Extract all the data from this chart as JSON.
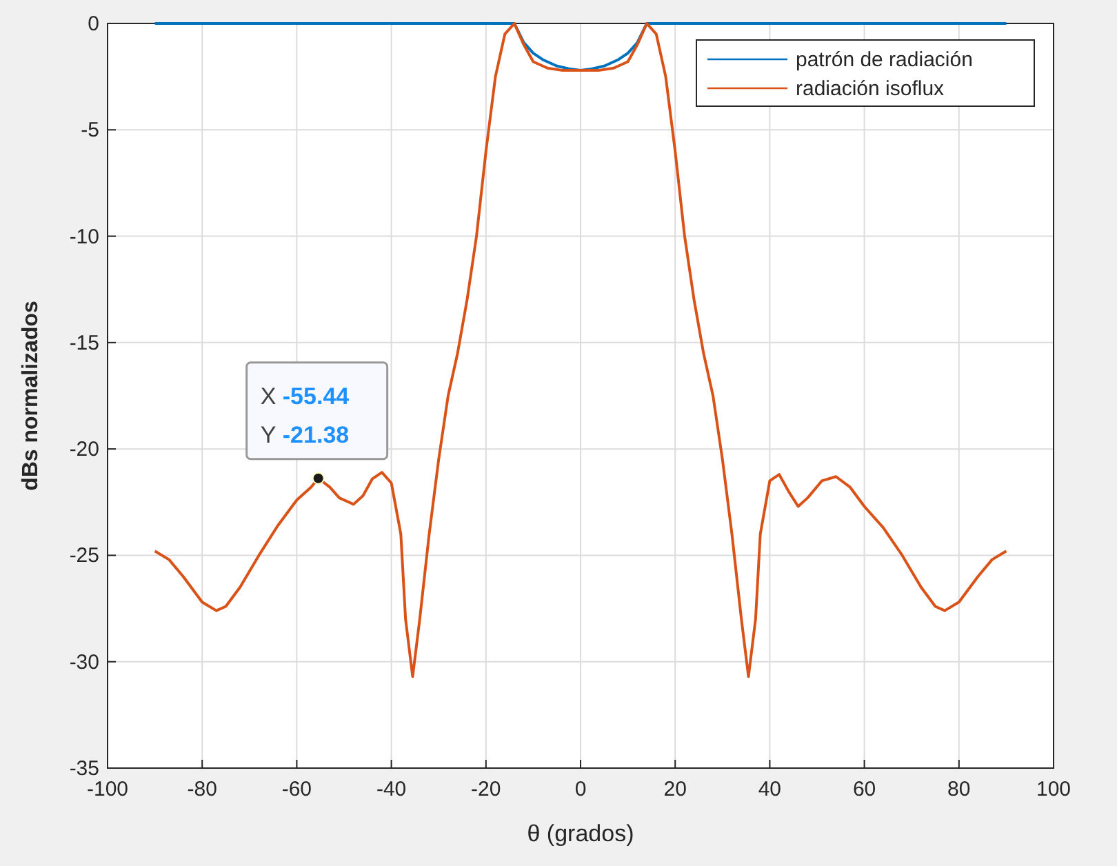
{
  "chart_data": {
    "type": "line",
    "xlabel": "θ (grados)",
    "ylabel": "dBs normalizados",
    "xlim": [
      -100,
      100
    ],
    "ylim": [
      -35,
      0
    ],
    "xticks": [
      -100,
      -80,
      -60,
      -40,
      -20,
      0,
      20,
      40,
      60,
      80,
      100
    ],
    "yticks": [
      -35,
      -30,
      -25,
      -20,
      -15,
      -10,
      -5,
      0
    ],
    "grid": true,
    "legend": "top right",
    "line_style": "solid",
    "series": [
      {
        "name": "patrón de radiación",
        "color": "#0072bd",
        "x": [
          -90,
          -60,
          -30,
          -14,
          -12,
          -10,
          -8,
          -5,
          -2,
          0,
          2,
          5,
          8,
          10,
          12,
          14,
          30,
          60,
          90
        ],
        "values": [
          0,
          0,
          0,
          0,
          -0.9,
          -1.4,
          -1.7,
          -2.0,
          -2.15,
          -2.2,
          -2.15,
          -2.0,
          -1.7,
          -1.4,
          -0.9,
          0,
          0,
          0,
          0
        ]
      },
      {
        "name": "radiación isoflux",
        "color": "#d95319",
        "x": [
          -90,
          -87,
          -84,
          -80,
          -77,
          -75,
          -72,
          -68,
          -64,
          -60,
          -57,
          -55.44,
          -53,
          -51,
          -48,
          -46,
          -44,
          -42,
          -40,
          -38,
          -37,
          -35.5,
          -34,
          -32,
          -30,
          -28,
          -26,
          -24,
          -22,
          -20,
          -18,
          -16,
          -14,
          -12,
          -10,
          -7,
          -4,
          0,
          4,
          7,
          10,
          12,
          14,
          16,
          18,
          20,
          22,
          24,
          26,
          28,
          30,
          32,
          34,
          35.5,
          37,
          38,
          40,
          42,
          44,
          46,
          48,
          51,
          54,
          57,
          60,
          64,
          68,
          72,
          75,
          77,
          80,
          84,
          87,
          90
        ],
        "values": [
          -24.8,
          -25.2,
          -26,
          -27.2,
          -27.6,
          -27.4,
          -26.5,
          -25,
          -23.6,
          -22.4,
          -21.8,
          -21.38,
          -21.8,
          -22.3,
          -22.6,
          -22.2,
          -21.4,
          -21.1,
          -21.6,
          -24,
          -28,
          -30.7,
          -28,
          -24,
          -20.5,
          -17.5,
          -15.5,
          -13,
          -10,
          -6,
          -2.5,
          -0.5,
          0,
          -1,
          -1.8,
          -2.1,
          -2.2,
          -2.2,
          -2.2,
          -2.1,
          -1.8,
          -1,
          0,
          -0.5,
          -2.5,
          -6,
          -10,
          -13,
          -15.5,
          -17.5,
          -20.5,
          -24,
          -28,
          -30.7,
          -28,
          -24,
          -21.5,
          -21.2,
          -22,
          -22.7,
          -22.3,
          -21.5,
          -21.3,
          -21.8,
          -22.7,
          -23.7,
          -25,
          -26.5,
          -27.4,
          -27.6,
          -27.2,
          -26,
          -25.2,
          -24.8
        ]
      }
    ],
    "annotations": [
      {
        "text": "X -55.44\nY -21.38",
        "x": -55.44,
        "y": -21.38
      }
    ]
  }
}
